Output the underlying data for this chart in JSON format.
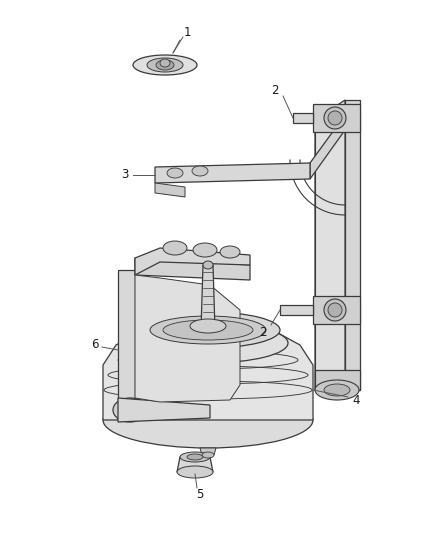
{
  "background_color": "#ffffff",
  "line_color": "#3a3a3a",
  "fill_light": "#e8e8e8",
  "fill_mid": "#d0d0d0",
  "fill_dark": "#b8b8b8",
  "label_color": "#1a1a1a",
  "label_font_size": 8.5,
  "leader_color": "#555555",
  "fig_width": 4.38,
  "fig_height": 5.33,
  "dpi": 100
}
